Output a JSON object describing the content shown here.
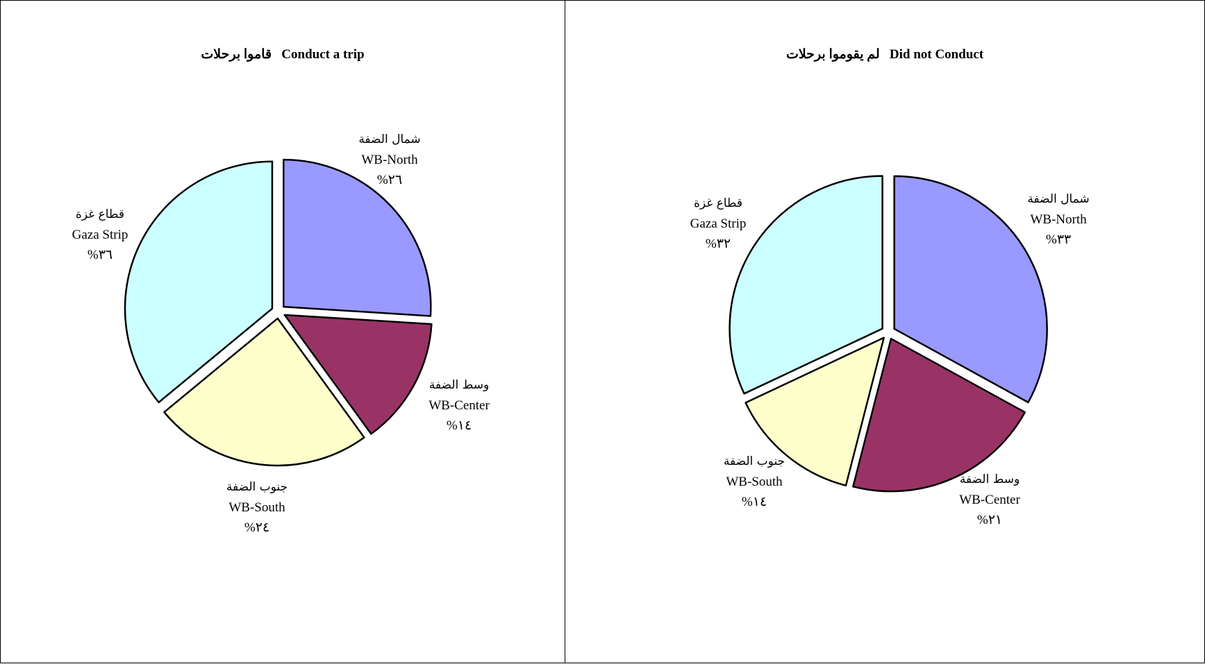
{
  "colors": {
    "north": "#9999FF",
    "center": "#993366",
    "south": "#FFFFCC",
    "gaza": "#CCFFFF",
    "stroke": "#000000"
  },
  "chart_data": [
    {
      "type": "pie",
      "title_ar": "قاموا برحلات",
      "title_en": "Conduct a trip",
      "slices": [
        {
          "key": "north",
          "label_ar": "شمال الضفة",
          "label_en": "WB-North",
          "value": 26,
          "value_text": "%٢٦"
        },
        {
          "key": "center",
          "label_ar": "وسط الضفة",
          "label_en": "WB-Center",
          "value": 14,
          "value_text": "%١٤"
        },
        {
          "key": "south",
          "label_ar": "جنوب الضفة",
          "label_en": "WB-South",
          "value": 24,
          "value_text": "%٢٤"
        },
        {
          "key": "gaza",
          "label_ar": "قطاع غزة",
          "label_en": "Gaza Strip",
          "value": 36,
          "value_text": "%٣٦"
        }
      ]
    },
    {
      "type": "pie",
      "title_ar": "لم يقوموا برحلات",
      "title_en": "Did not Conduct",
      "slices": [
        {
          "key": "north",
          "label_ar": "شمال الضفة",
          "label_en": "WB-North",
          "value": 33,
          "value_text": "%٣٣"
        },
        {
          "key": "center",
          "label_ar": "وسط الضفة",
          "label_en": "WB-Center",
          "value": 21,
          "value_text": "%٢١"
        },
        {
          "key": "south",
          "label_ar": "جنوب الضفة",
          "label_en": "WB-South",
          "value": 14,
          "value_text": "%١٤"
        },
        {
          "key": "gaza",
          "label_ar": "قطاع غزة",
          "label_en": "Gaza Strip",
          "value": 32,
          "value_text": "%٣٢"
        }
      ]
    }
  ]
}
